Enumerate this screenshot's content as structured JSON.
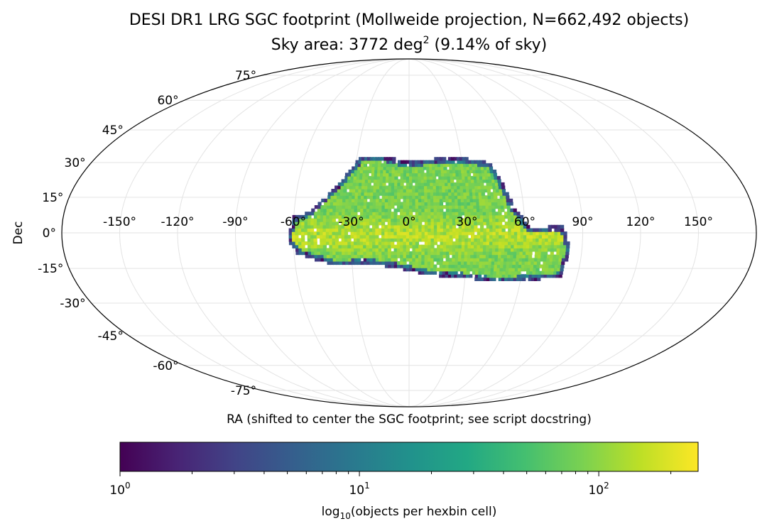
{
  "chart_data": {
    "type": "heatmap",
    "projection": "Mollweide",
    "title": "DESI DR1 LRG SGC footprint (Mollweide projection, N=662,492 objects)",
    "subtitle_prefix": "Sky area: 3772 deg",
    "subtitle_sup": "2",
    "subtitle_suffix": " (9.14% of sky)",
    "xlabel": "RA (shifted to center the SGC footprint; see script docstring)",
    "ylabel": "Dec",
    "x_ticks": [
      "-150°",
      "-120°",
      "-90°",
      "-60°",
      "-30°",
      "0°",
      "30°",
      "60°",
      "90°",
      "120°",
      "150°"
    ],
    "x_tick_values": [
      -150,
      -120,
      -90,
      -60,
      -30,
      0,
      30,
      60,
      90,
      120,
      150
    ],
    "y_ticks": [
      "75°",
      "60°",
      "45°",
      "30°",
      "15°",
      "0°",
      "-15°",
      "-30°",
      "-45°",
      "-60°",
      "-75°"
    ],
    "y_tick_values": [
      75,
      60,
      45,
      30,
      15,
      0,
      -15,
      -30,
      -45,
      -60,
      -75
    ],
    "grid": true,
    "colormap": "viridis",
    "colorbar": {
      "label_prefix": "log",
      "label_sub": "10",
      "label_suffix": "(objects per hexbin cell)",
      "scale": "log",
      "range": [
        1,
        260
      ],
      "ticks": [
        {
          "value": 1,
          "base": "10",
          "exp": "0"
        },
        {
          "value": 10,
          "base": "10",
          "exp": "1"
        },
        {
          "value": 100,
          "base": "10",
          "exp": "2"
        }
      ]
    },
    "footprint": {
      "ra_range": [
        -63,
        84
      ],
      "dec_range": [
        -21,
        33
      ],
      "outline_lon_lat": [
        [
          -63,
          -3
        ],
        [
          -60,
          7
        ],
        [
          -54,
          8
        ],
        [
          -48,
          12
        ],
        [
          -36,
          23
        ],
        [
          -27,
          33
        ],
        [
          -15,
          33
        ],
        [
          -5,
          31
        ],
        [
          8,
          31
        ],
        [
          18,
          32
        ],
        [
          32,
          32
        ],
        [
          46,
          30
        ],
        [
          52,
          18
        ],
        [
          55,
          11
        ],
        [
          63,
          2
        ],
        [
          80,
          3
        ],
        [
          84,
          -7
        ],
        [
          81,
          -19
        ],
        [
          65,
          -20
        ],
        [
          48,
          -21
        ],
        [
          28,
          -19
        ],
        [
          12,
          -18
        ],
        [
          -5,
          -15
        ],
        [
          -22,
          -13
        ],
        [
          -38,
          -14
        ],
        [
          -50,
          -11
        ],
        [
          -58,
          -9
        ]
      ]
    }
  }
}
